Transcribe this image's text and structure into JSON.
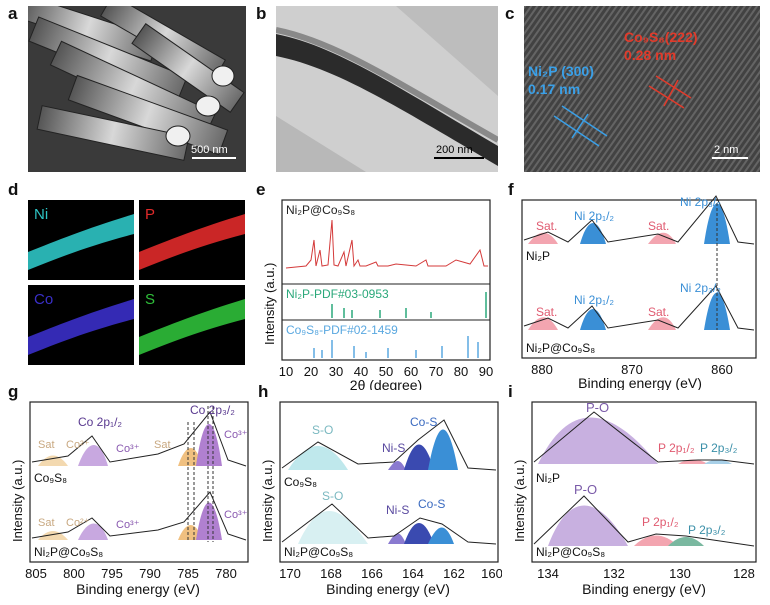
{
  "panels": {
    "a": {
      "label": "a",
      "scale": "500 nm"
    },
    "b": {
      "label": "b",
      "scale": "200 nm"
    },
    "c": {
      "label": "c",
      "scale": "2 nm",
      "ann1_l1": "Ni₂P (300)",
      "ann1_l2": "0.17 nm",
      "ann2_l1": "Co₉S₈(222)",
      "ann2_l2": "0.28 nm"
    },
    "d": {
      "label": "d",
      "ni": "Ni",
      "p": "P",
      "co": "Co",
      "s": "S"
    },
    "e": {
      "label": "e",
      "title": "Ni₂P@Co₉S₈",
      "ref1": "Ni₂P-PDF#03-0953",
      "ref2": "Co₉S₈-PDF#02-1459",
      "ylabel": "Intensity (a.u.)",
      "xlabel": "2θ (degree)",
      "ticks": [
        "10",
        "20",
        "30",
        "40",
        "50",
        "60",
        "70",
        "80",
        "90"
      ]
    },
    "f": {
      "label": "f",
      "s1": "Ni₂P",
      "s2": "Ni₂P@Co₉S₈",
      "p_sat": "Sat.",
      "p_2p12": "Ni 2p₁/₂",
      "p_2p32": "Ni 2p₃/₂",
      "xlabel": "Binding energy (eV)",
      "ticks": [
        "880",
        "870",
        "860"
      ]
    },
    "g": {
      "label": "g",
      "s1": "Co₉S₈",
      "s2": "Ni₂P@Co₉S₈",
      "co2p12": "Co 2p₁/₂",
      "co2p32": "Co 2p₃/₂",
      "sat": "Sat",
      "co2": "Co²⁺",
      "co3": "Co³⁺",
      "ylabel": "Intensity (a.u.)",
      "xlabel": "Binding energy (eV)",
      "ticks": [
        "805",
        "800",
        "795",
        "790",
        "785",
        "780"
      ]
    },
    "h": {
      "label": "h",
      "s1": "Co₉S₈",
      "s2": "Ni₂P@Co₉S₈",
      "so": "S-O",
      "nis": "Ni-S",
      "cos": "Co-S",
      "ylabel": "Intensity (a.u.)",
      "xlabel": "Binding energy (eV)",
      "ticks": [
        "170",
        "168",
        "166",
        "164",
        "162",
        "160"
      ]
    },
    "i": {
      "label": "i",
      "s1": "Ni₂P",
      "s2": "Ni₂P@Co₉S₈",
      "po": "P-O",
      "p2p12": "P 2p₁/₂",
      "p2p32": "P 2p₃/₂",
      "ylabel": "Intensity (a.u.)",
      "xlabel": "Binding energy (eV)",
      "ticks": [
        "134",
        "132",
        "130",
        "128"
      ]
    }
  },
  "colors": {
    "ni": "#2ec4c4",
    "p": "#e02a2a",
    "co": "#3a2fc8",
    "s": "#2fbf3a",
    "pink": "#f3a5b0",
    "blue": "#3a8fd6",
    "ref_green": "#2aa87a",
    "ref_blue": "#5aa8e0"
  }
}
